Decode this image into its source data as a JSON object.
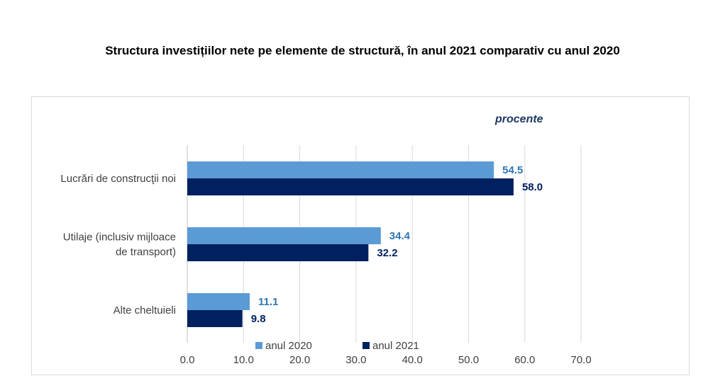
{
  "title": "Structura investițiilor nete pe elemente de structură, în anul 2021 comparativ cu anul 2020",
  "chart_data": {
    "type": "bar",
    "orientation": "horizontal",
    "unit_label": "procente",
    "categories": [
      [
        "Lucrări de construcţii noi"
      ],
      [
        "Utilaje (inclusiv mijloace",
        "de transport)"
      ],
      [
        "Alte cheltuieli"
      ]
    ],
    "series": [
      {
        "name": "anul 2020",
        "color": "#5b9bd5",
        "label_color": "#2e75b6",
        "values": [
          54.5,
          34.4,
          11.1
        ]
      },
      {
        "name": "anul 2021",
        "color": "#002060",
        "label_color": "#002060",
        "values": [
          58.0,
          32.2,
          9.8
        ]
      }
    ],
    "xlim": [
      0,
      70
    ],
    "xticks": [
      "0.0",
      "10.0",
      "20.0",
      "30.0",
      "40.0",
      "50.0",
      "60.0",
      "70.0"
    ],
    "grid": "vertical",
    "legend": "bottom-center"
  }
}
